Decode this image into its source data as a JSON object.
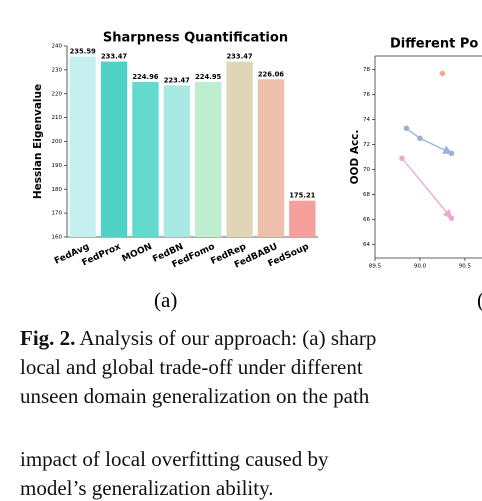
{
  "chart_data": [
    {
      "type": "bar",
      "title": "Sharpness Quantification",
      "ylabel": "Hessian Eigenvalue",
      "categories": [
        "FedAvg",
        "FedProx",
        "MOON",
        "FedBN",
        "FedFomo",
        "FedRep",
        "FedBABU",
        "FedSoup"
      ],
      "values": [
        235.59,
        233.47,
        224.96,
        223.47,
        224.95,
        233.47,
        226.06,
        175.21
      ],
      "colors": [
        "#c6eff0",
        "#4fd1c5",
        "#62dace",
        "#a9e9e4",
        "#bfedd0",
        "#e0d6b6",
        "#eebfa9",
        "#f5a09b"
      ],
      "ylim": [
        160,
        240
      ],
      "yticks": [
        160,
        170,
        180,
        190,
        200,
        210,
        220,
        230,
        240
      ],
      "grid": false
    },
    {
      "type": "line",
      "title": "Different Po",
      "ylabel": "OOD Acc.",
      "series": [
        {
          "color": "#f5a592",
          "x": [
            90.25
          ],
          "values": [
            77.7
          ]
        },
        {
          "color": "#9eb0d8",
          "x": [
            89.85,
            90.0,
            90.35
          ],
          "values": [
            73.3,
            72.5,
            71.3
          ]
        },
        {
          "color": "#f0a7cc",
          "x": [
            89.8,
            90.35
          ],
          "values": [
            70.9,
            66.1
          ]
        }
      ],
      "xlim": [
        89.5,
        90.69
      ],
      "xticks": [
        89.5,
        {
          "value": 90,
          "label": "90.0"
        },
        90.5
      ],
      "ylim": [
        62.9,
        79.1
      ],
      "yticks": [
        64,
        66,
        68,
        70,
        72,
        74,
        76,
        78
      ],
      "grid": false
    }
  ],
  "subfigure_labels": [
    "(a)",
    "("
  ],
  "caption": {
    "label": "Fig. 2.",
    "lines": [
      "Analysis of our approach: (a) sharp",
      "local and global trade-off under different",
      "unseen domain generalization on the path"
    ]
  },
  "body": [
    "impact of local overfitting caused by",
    "model’s generalization ability."
  ]
}
